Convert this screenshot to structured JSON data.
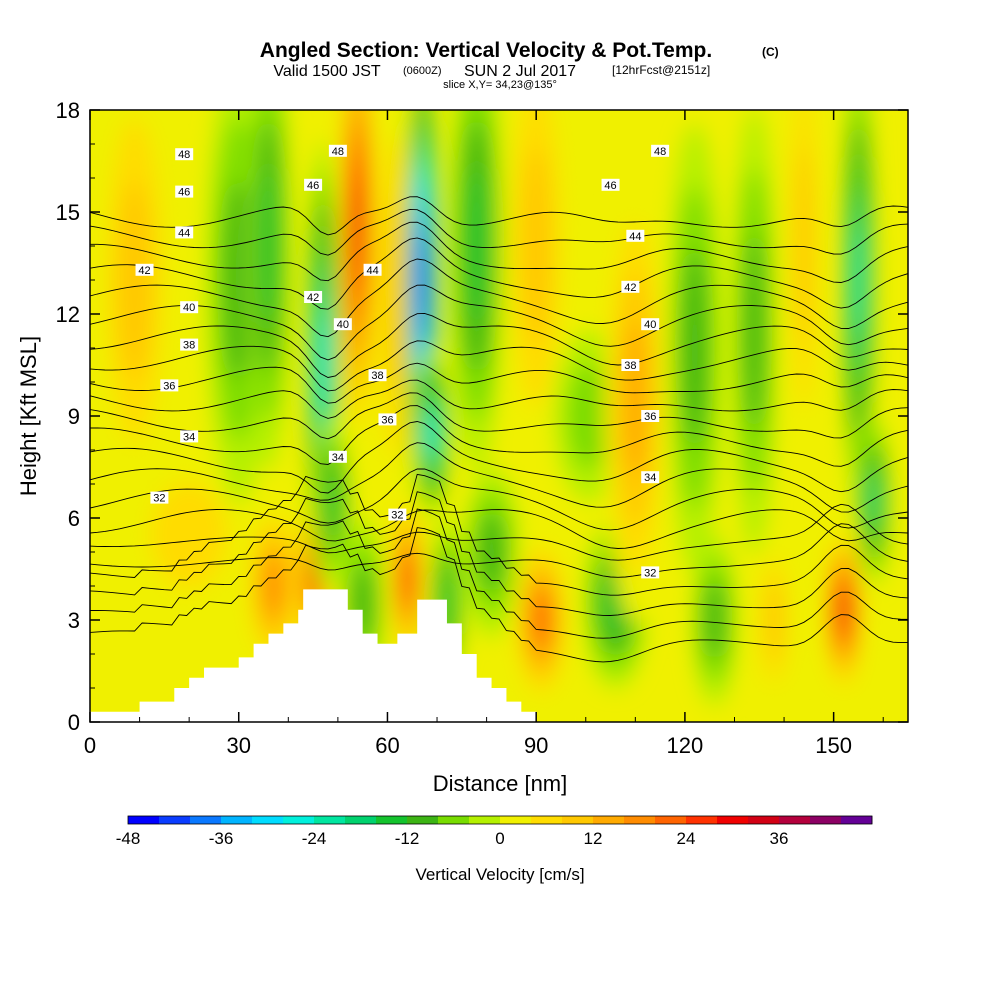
{
  "title": {
    "main": "Angled Section: Vertical Velocity & Pot.Temp.",
    "main_suffix": "(C)",
    "valid_prefix": "Valid 1500 JST",
    "valid_utc": "(0600Z)",
    "valid_date": "SUN 2 Jul 2017",
    "forecast": "[12hrFcst@2151z]",
    "slice": "slice X,Y= 34,23@135°"
  },
  "colorbar": {
    "label": "Vertical Velocity [cm/s]",
    "tick_labels": [
      "-48",
      "-36",
      "-24",
      "-12",
      "0",
      "12",
      "24",
      "36"
    ],
    "levels": [
      -48,
      -44,
      -40,
      -36,
      -32,
      -28,
      -24,
      -20,
      -16,
      -12,
      -8,
      -4,
      0,
      4,
      8,
      12,
      16,
      20,
      24,
      28,
      32,
      36,
      40,
      44
    ],
    "colors": [
      "#0000ff",
      "#0a3cff",
      "#0a78ff",
      "#00b4ff",
      "#00dcff",
      "#00f0dc",
      "#00e6a0",
      "#00d26e",
      "#14c32d",
      "#3cb414",
      "#78dc00",
      "#b4f000",
      "#f0f000",
      "#ffdc00",
      "#ffc800",
      "#ffaa00",
      "#ff8c00",
      "#ff6400",
      "#ff3200",
      "#f00000",
      "#d20014",
      "#b4003c",
      "#8c0064",
      "#640096"
    ]
  },
  "chart_data": {
    "type": "heatmap",
    "title": "Angled Section: Vertical Velocity & Pot.Temp.",
    "xlabel": "Distance [nm]",
    "ylabel": "Height [Kft MSL]",
    "xlim": [
      0,
      165
    ],
    "ylim": [
      0,
      18
    ],
    "xticks": [
      0,
      30,
      60,
      90,
      120,
      150
    ],
    "yticks": [
      0,
      3,
      6,
      9,
      12,
      15,
      18
    ],
    "shaded_field": "Vertical Velocity [cm/s]",
    "vertical_velocity_features": [
      {
        "x": 9,
        "y": 13,
        "w": 7,
        "value": 10
      },
      {
        "x": 20,
        "y": 5.5,
        "w": 12,
        "value": 5
      },
      {
        "x": 30,
        "y": 13,
        "w": 6,
        "value": -8
      },
      {
        "x": 36,
        "y": 14,
        "w": 4,
        "value": -14
      },
      {
        "x": 37,
        "y": 4,
        "w": 5,
        "value": 18
      },
      {
        "x": 45,
        "y": 4.3,
        "w": 3,
        "value": 26
      },
      {
        "x": 47,
        "y": 10.5,
        "w": 3,
        "value": -26
      },
      {
        "x": 49,
        "y": 6.5,
        "w": 3,
        "value": -14
      },
      {
        "x": 54,
        "y": 14.5,
        "w": 3.5,
        "value": 30
      },
      {
        "x": 55,
        "y": 3.5,
        "w": 4,
        "value": -10
      },
      {
        "x": 62,
        "y": 12.5,
        "w": 4,
        "value": 10
      },
      {
        "x": 64,
        "y": 4.2,
        "w": 3,
        "value": 24
      },
      {
        "x": 67,
        "y": 13,
        "w": 3,
        "value": -44
      },
      {
        "x": 69,
        "y": 8.5,
        "w": 3,
        "value": -26
      },
      {
        "x": 72,
        "y": 3.5,
        "w": 3,
        "value": -14
      },
      {
        "x": 78,
        "y": 14,
        "w": 5,
        "value": -14
      },
      {
        "x": 81,
        "y": 5,
        "w": 5,
        "value": -8
      },
      {
        "x": 90,
        "y": 14,
        "w": 6,
        "value": 8
      },
      {
        "x": 91,
        "y": 3,
        "w": 5,
        "value": 22
      },
      {
        "x": 101,
        "y": 9,
        "w": 7,
        "value": -7
      },
      {
        "x": 106,
        "y": 3.5,
        "w": 6,
        "value": -15
      },
      {
        "x": 110,
        "y": 9.5,
        "w": 6,
        "value": 14
      },
      {
        "x": 122,
        "y": 11,
        "w": 5,
        "value": -10
      },
      {
        "x": 126,
        "y": 3,
        "w": 4,
        "value": -8
      },
      {
        "x": 134,
        "y": 11.5,
        "w": 4,
        "value": -10
      },
      {
        "x": 138,
        "y": 3,
        "w": 3,
        "value": 8
      },
      {
        "x": 144,
        "y": 14,
        "w": 3,
        "value": 8
      },
      {
        "x": 152,
        "y": 3.3,
        "w": 3.5,
        "value": 28
      },
      {
        "x": 155,
        "y": 13,
        "w": 3,
        "value": -22
      },
      {
        "x": 158,
        "y": 6.5,
        "w": 3,
        "value": -18
      }
    ],
    "terrain": [
      {
        "x": 0,
        "h": 0.3
      },
      {
        "x": 10,
        "h": 0.3
      },
      {
        "x": 10,
        "h": 0.6
      },
      {
        "x": 17,
        "h": 0.6
      },
      {
        "x": 17,
        "h": 1.0
      },
      {
        "x": 20,
        "h": 1.0
      },
      {
        "x": 20,
        "h": 1.3
      },
      {
        "x": 23,
        "h": 1.3
      },
      {
        "x": 23,
        "h": 1.6
      },
      {
        "x": 30,
        "h": 1.6
      },
      {
        "x": 30,
        "h": 1.9
      },
      {
        "x": 33,
        "h": 1.9
      },
      {
        "x": 33,
        "h": 2.3
      },
      {
        "x": 36,
        "h": 2.3
      },
      {
        "x": 36,
        "h": 2.6
      },
      {
        "x": 39,
        "h": 2.6
      },
      {
        "x": 39,
        "h": 2.9
      },
      {
        "x": 42,
        "h": 2.9
      },
      {
        "x": 42,
        "h": 3.3
      },
      {
        "x": 43,
        "h": 3.3
      },
      {
        "x": 43,
        "h": 3.9
      },
      {
        "x": 52,
        "h": 3.9
      },
      {
        "x": 52,
        "h": 3.3
      },
      {
        "x": 55,
        "h": 3.3
      },
      {
        "x": 55,
        "h": 2.6
      },
      {
        "x": 58,
        "h": 2.6
      },
      {
        "x": 58,
        "h": 2.3
      },
      {
        "x": 62,
        "h": 2.3
      },
      {
        "x": 62,
        "h": 2.6
      },
      {
        "x": 66,
        "h": 2.6
      },
      {
        "x": 66,
        "h": 3.6
      },
      {
        "x": 72,
        "h": 3.6
      },
      {
        "x": 72,
        "h": 2.9
      },
      {
        "x": 75,
        "h": 2.9
      },
      {
        "x": 75,
        "h": 2.0
      },
      {
        "x": 78,
        "h": 2.0
      },
      {
        "x": 78,
        "h": 1.3
      },
      {
        "x": 81,
        "h": 1.3
      },
      {
        "x": 81,
        "h": 1.0
      },
      {
        "x": 84,
        "h": 1.0
      },
      {
        "x": 84,
        "h": 0.6
      },
      {
        "x": 87,
        "h": 0.6
      },
      {
        "x": 87,
        "h": 0.3
      },
      {
        "x": 90,
        "h": 0.3
      },
      {
        "x": 90,
        "h": 0
      }
    ],
    "potential_temperature_contours": {
      "field": "Pot.Temp. (C)",
      "levels": [
        28,
        29,
        30,
        31,
        32,
        33,
        34,
        35,
        36,
        37,
        38,
        39,
        40,
        41,
        42,
        43,
        44,
        45,
        46,
        47,
        48,
        49
      ],
      "base_height_at_theta_30": 3.5,
      "kft_per_degree": 0.6,
      "labels": [
        {
          "x": 14,
          "y": 6.6,
          "text": "32"
        },
        {
          "x": 20,
          "y": 8.4,
          "text": "34"
        },
        {
          "x": 16,
          "y": 9.9,
          "text": "36"
        },
        {
          "x": 20,
          "y": 11.1,
          "text": "38"
        },
        {
          "x": 20,
          "y": 12.2,
          "text": "40"
        },
        {
          "x": 11,
          "y": 13.3,
          "text": "42"
        },
        {
          "x": 19,
          "y": 14.4,
          "text": "44"
        },
        {
          "x": 19,
          "y": 15.6,
          "text": "46"
        },
        {
          "x": 19,
          "y": 16.7,
          "text": "48"
        },
        {
          "x": 62,
          "y": 6.1,
          "text": "32"
        },
        {
          "x": 50,
          "y": 7.8,
          "text": "34"
        },
        {
          "x": 60,
          "y": 8.9,
          "text": "36"
        },
        {
          "x": 58,
          "y": 10.2,
          "text": "38"
        },
        {
          "x": 51,
          "y": 11.7,
          "text": "40"
        },
        {
          "x": 45,
          "y": 12.5,
          "text": "42"
        },
        {
          "x": 57,
          "y": 13.3,
          "text": "44"
        },
        {
          "x": 45,
          "y": 15.8,
          "text": "46"
        },
        {
          "x": 50,
          "y": 16.8,
          "text": "48"
        },
        {
          "x": 113,
          "y": 4.4,
          "text": "32"
        },
        {
          "x": 113,
          "y": 7.2,
          "text": "34"
        },
        {
          "x": 113,
          "y": 9.0,
          "text": "36"
        },
        {
          "x": 109,
          "y": 10.5,
          "text": "38"
        },
        {
          "x": 113,
          "y": 11.7,
          "text": "40"
        },
        {
          "x": 109,
          "y": 12.8,
          "text": "42"
        },
        {
          "x": 110,
          "y": 14.3,
          "text": "44"
        },
        {
          "x": 105,
          "y": 15.8,
          "text": "46"
        },
        {
          "x": 115,
          "y": 16.8,
          "text": "48"
        }
      ]
    }
  }
}
